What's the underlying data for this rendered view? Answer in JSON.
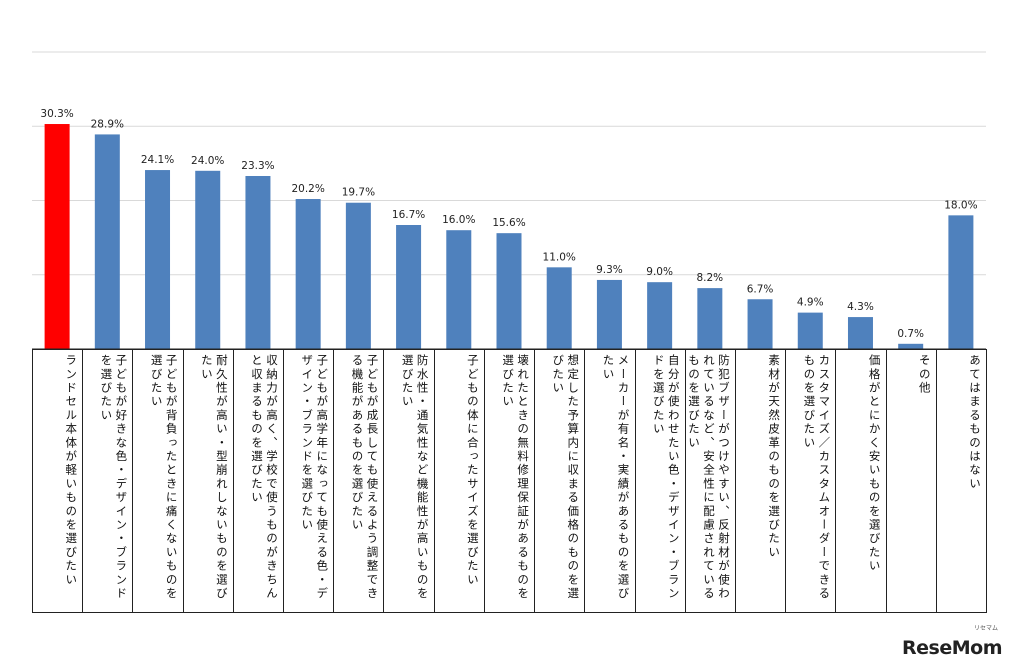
{
  "chart_data": {
    "type": "bar",
    "ylim": [
      0,
      40
    ],
    "grid": true,
    "categories": [
      "ランドセル本体が軽いものを選びたい",
      "子どもが好きな色・デザイン・ブランドを選びたい",
      "子どもが背負ったときに痛くないものを選びたい",
      "耐久性が高い・型崩れしないものを選びたい",
      "収納力が高く、学校で使うものがきちんと収まるものを選びたい",
      "子どもが高学年になっても使える色・デザイン・ブランドを選びたい",
      "子どもが成長しても使えるよう調整できる機能があるものを選びたい",
      "防水性・通気性など機能性が高いものを選びたい",
      "子どもの体に合ったサイズを選びたい",
      "壊れたときの無料修理保証があるものを選びたい",
      "想定した予算内に収まる価格のものを選びたい",
      "メーカーが有名・実績があるものを選びたい",
      "自分が使わせたい色・デザイン・ブランドを選びたい",
      "防犯ブザーがつけやすい、反射材が使われているなど、安全性に配慮されているものを選びたい",
      "素材が天然皮革のものを選びたい",
      "カスタマイズ／カスタムオーダーできるものを選びたい",
      "価格がとにかく安いものを選びたい",
      "その他",
      "あてはまるものはない"
    ],
    "values": [
      30.3,
      28.9,
      24.1,
      24.0,
      23.3,
      20.2,
      19.7,
      16.7,
      16.0,
      15.6,
      11.0,
      9.3,
      9.0,
      8.2,
      6.7,
      4.9,
      4.3,
      0.7,
      18.0
    ],
    "value_labels": [
      "30.3%",
      "28.9%",
      "24.1%",
      "24.0%",
      "23.3%",
      "20.2%",
      "19.7%",
      "16.7%",
      "16.0%",
      "15.6%",
      "11.0%",
      "9.3%",
      "9.0%",
      "8.2%",
      "6.7%",
      "4.9%",
      "4.3%",
      "0.7%",
      "18.0%"
    ],
    "colors": {
      "highlight": "#ff0000",
      "default": "#4f81bd"
    },
    "highlight_index": 0
  },
  "watermark": {
    "brand": "ReseMom",
    "sub": "リセマム"
  }
}
